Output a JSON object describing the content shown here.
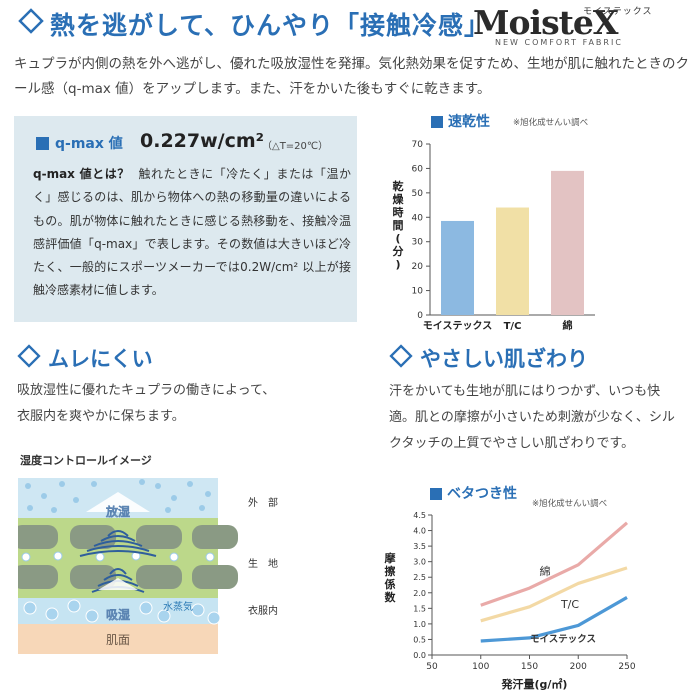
{
  "header": {
    "title": "熱を逃がして、ひんやり「接触冷感」",
    "logo_small": "モイステックス",
    "logo": "MoisteX",
    "logo_sub": "NEW COMFORT FABRIC",
    "intro": "キュプラが内側の熱を外へ逃がし、優れた吸放湿性を発揮。気化熱効果を促すため、生地が肌に触れたときのクール感（q-max 値）をアップします。また、汗をかいた後もすぐに乾きます。"
  },
  "qmax": {
    "label": "q-max 値",
    "value": "0.227w/cm²",
    "condition": "（△T=20℃）",
    "lead": "q-max 値とは？",
    "text": "触れたときに「冷たく」または「温かく」感じるのは、肌から物体への熱の移動量の違いによるもの。肌が物体に触れたときに感じる熱移動を、接触冷温感評価値「q-max」で表します。その数値は大きいほど冷たく、一般的にスポーツメーカーでは0.2W/cm² 以上が接触冷感素材に値します。"
  },
  "sections": {
    "mure": {
      "title": "ムレにくい",
      "text": "吸放湿性に優れたキュプラの働きによって、衣服内を爽やかに保ちます。"
    },
    "hada": {
      "title": "やさしい肌ざわり",
      "text": "汗をかいても生地が肌にはりつかず、いつも快適。肌との摩擦が小さいため刺激が少なく、シルクタッチの上質でやさしい肌ざわりです。"
    }
  },
  "diagram": {
    "title": "湿度コントロールイメージ",
    "labels": {
      "release": "放湿",
      "absorb": "吸湿",
      "vapor": "水蒸気",
      "skin": "肌面",
      "outside": "外　部",
      "fabric": "生　地",
      "inside": "衣服内"
    },
    "colors": {
      "sky": "#cfe7f3",
      "fabric": "#bcd88a",
      "yarn": "#8a9a84",
      "inner": "#c6e4f2",
      "skin": "#f7d7b8",
      "bubble": "#9ccbe8"
    }
  },
  "chart_data": [
    {
      "type": "bar",
      "title": "速乾性",
      "note": "※旭化成せんい調べ",
      "ylabel": "乾燥時間(分)",
      "categories": [
        "モイステックス",
        "T/C",
        "綿"
      ],
      "values": [
        38.5,
        44,
        59
      ],
      "colors": [
        "#8cb9e1",
        "#f1e0a6",
        "#e3c3c3"
      ],
      "ylim": [
        0,
        70
      ],
      "yticks": [
        0,
        10,
        20,
        30,
        40,
        50,
        60,
        70
      ]
    },
    {
      "type": "line",
      "title": "ベタつき性",
      "note": "※旭化成せんい調べ",
      "xlabel": "発汗量(g/㎡)",
      "ylabel": "摩擦係数",
      "x": [
        100,
        150,
        200,
        250
      ],
      "xlim": [
        50,
        250
      ],
      "xticks": [
        50,
        100,
        150,
        200,
        250
      ],
      "ylim": [
        0,
        4.5
      ],
      "yticks": [
        0,
        0.5,
        1.0,
        1.5,
        2.0,
        2.5,
        3.0,
        3.5,
        4.0,
        4.5
      ],
      "series": [
        {
          "name": "綿",
          "values": [
            1.6,
            2.15,
            2.9,
            4.25
          ],
          "color": "#e9aaa8"
        },
        {
          "name": "T/C",
          "values": [
            1.1,
            1.55,
            2.3,
            2.8
          ],
          "color": "#f3d9a5"
        },
        {
          "name": "モイステックス",
          "values": [
            0.45,
            0.55,
            0.95,
            1.85
          ],
          "color": "#4d98d6"
        }
      ]
    }
  ]
}
